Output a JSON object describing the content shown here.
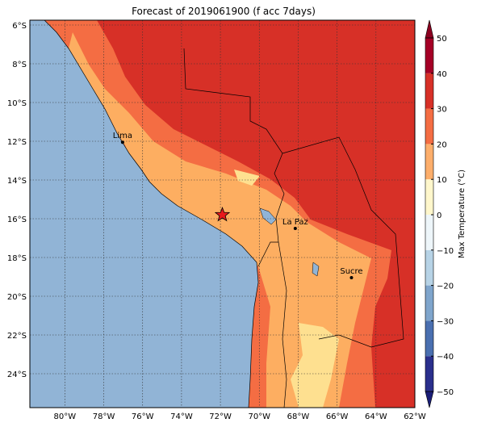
{
  "title": "Forecast of 2019061900 (f acc 7days)",
  "map": {
    "xlim": [
      -81.8,
      -62
    ],
    "ylim": [
      -25.75,
      -5.75
    ],
    "grid": true,
    "xticks": [
      {
        "value": -80,
        "label": "80°W"
      },
      {
        "value": -78,
        "label": "78°W"
      },
      {
        "value": -76,
        "label": "76°W"
      },
      {
        "value": -74,
        "label": "74°W"
      },
      {
        "value": -72,
        "label": "72°W"
      },
      {
        "value": -70,
        "label": "70°W"
      },
      {
        "value": -68,
        "label": "68°W"
      },
      {
        "value": -66,
        "label": "66°W"
      },
      {
        "value": -64,
        "label": "64°W"
      },
      {
        "value": -62,
        "label": "62°W"
      }
    ],
    "yticks": [
      {
        "value": -6,
        "label": "6°S"
      },
      {
        "value": -8,
        "label": "8°S"
      },
      {
        "value": -10,
        "label": "10°S"
      },
      {
        "value": -12,
        "label": "12°S"
      },
      {
        "value": -14,
        "label": "14°S"
      },
      {
        "value": -16,
        "label": "16°S"
      },
      {
        "value": -18,
        "label": "18°S"
      },
      {
        "value": -20,
        "label": "20°S"
      },
      {
        "value": -22,
        "label": "22°S"
      },
      {
        "value": -24,
        "label": "24°S"
      }
    ]
  },
  "cities": [
    {
      "name": "Lima",
      "lon": -77.03,
      "lat": -12.05
    },
    {
      "name": "La Paz",
      "lon": -68.15,
      "lat": -16.5
    },
    {
      "name": "Sucre",
      "lon": -65.26,
      "lat": -19.04
    }
  ],
  "star": {
    "lon": -71.9,
    "lat": -15.8,
    "color": "#e8191c"
  },
  "colorbar": {
    "label": "Max Temperature (°C)",
    "ticks": [
      {
        "value": -50,
        "label": "−50"
      },
      {
        "value": -40,
        "label": "−40"
      },
      {
        "value": -30,
        "label": "−30"
      },
      {
        "value": -20,
        "label": "−20"
      },
      {
        "value": -10,
        "label": "−10"
      },
      0,
      10,
      20,
      30,
      40,
      50
    ],
    "colors": [
      "#2a2f8c",
      "#4a6fb0",
      "#7fa5cc",
      "#b7d3e6",
      "#eef6fa",
      "#fff7cc",
      "#fdae6b",
      "#f46d43",
      "#d73027",
      "#a50026"
    ],
    "under": "#1a1e78",
    "over": "#8c0020"
  }
}
